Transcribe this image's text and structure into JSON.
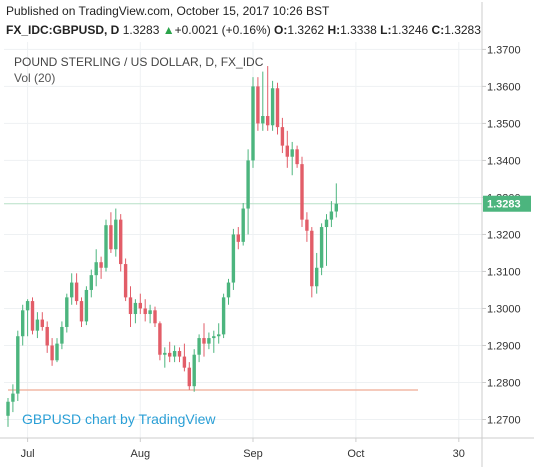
{
  "published_text": "Published on TradingView.com, October 15, 2017 10:26 BST",
  "quote": {
    "symbol": "FX_IDC:GBPUSD, D",
    "last": "1.3283",
    "change_arrow": "▲",
    "change": "+0.0021 (+0.16%)",
    "o_label": "O:",
    "o_value": "1.3262",
    "h_label": "H:",
    "h_value": "1.3338",
    "l_label": "L:",
    "l_value": "1.3246",
    "c_label": "C:",
    "c_value": "1.3283"
  },
  "colors": {
    "up": "#4cb57e",
    "down": "#e25d68",
    "last_price_bg": "#4cb57e",
    "last_price_line": "#b7e0c7",
    "vol_line": "#f2b8a6",
    "watermark": "#2a9fd6",
    "grid": "#eef1f3",
    "axis": "#cccccc"
  },
  "chart_data": {
    "type": "candlestick",
    "title": "POUND STERLING / US DOLLAR, D, FX_IDC",
    "indicator_label": "Vol (20)",
    "watermark": "GBPUSD chart by TradingView",
    "last_price_label": "1.3283",
    "ylim": [
      1.265,
      1.372
    ],
    "y_ticks": [
      "1.2700",
      "1.2800",
      "1.2900",
      "1.3000",
      "1.3100",
      "1.3200",
      "1.3300",
      "1.3400",
      "1.3500",
      "1.3600",
      "1.3700"
    ],
    "x_ticks": [
      {
        "label": "Jul",
        "index": 4
      },
      {
        "label": "Aug",
        "index": 27
      },
      {
        "label": "Sep",
        "index": 50
      },
      {
        "label": "Oct",
        "index": 71
      },
      {
        "label": "30",
        "index": 92
      }
    ],
    "candles": [
      {
        "o": 1.271,
        "h": 1.2758,
        "l": 1.268,
        "c": 1.2748
      },
      {
        "o": 1.2748,
        "h": 1.2795,
        "l": 1.272,
        "c": 1.277
      },
      {
        "o": 1.277,
        "h": 1.294,
        "l": 1.275,
        "c": 1.2925
      },
      {
        "o": 1.2925,
        "h": 1.301,
        "l": 1.29,
        "c": 1.2995
      },
      {
        "o": 1.2995,
        "h": 1.3025,
        "l": 1.2925,
        "c": 1.302
      },
      {
        "o": 1.302,
        "h": 1.303,
        "l": 1.293,
        "c": 1.294
      },
      {
        "o": 1.294,
        "h": 1.299,
        "l": 1.292,
        "c": 1.297
      },
      {
        "o": 1.297,
        "h": 1.299,
        "l": 1.294,
        "c": 1.295
      },
      {
        "o": 1.295,
        "h": 1.2965,
        "l": 1.288,
        "c": 1.29
      },
      {
        "o": 1.29,
        "h": 1.292,
        "l": 1.2845,
        "c": 1.286
      },
      {
        "o": 1.286,
        "h": 1.292,
        "l": 1.2855,
        "c": 1.2905
      },
      {
        "o": 1.2905,
        "h": 1.2965,
        "l": 1.289,
        "c": 1.295
      },
      {
        "o": 1.295,
        "h": 1.304,
        "l": 1.2935,
        "c": 1.303
      },
      {
        "o": 1.303,
        "h": 1.3095,
        "l": 1.301,
        "c": 1.307
      },
      {
        "o": 1.307,
        "h": 1.3095,
        "l": 1.301,
        "c": 1.302
      },
      {
        "o": 1.302,
        "h": 1.303,
        "l": 1.295,
        "c": 1.2965
      },
      {
        "o": 1.2965,
        "h": 1.306,
        "l": 1.2955,
        "c": 1.305
      },
      {
        "o": 1.305,
        "h": 1.3105,
        "l": 1.303,
        "c": 1.309
      },
      {
        "o": 1.309,
        "h": 1.316,
        "l": 1.306,
        "c": 1.3125
      },
      {
        "o": 1.3125,
        "h": 1.314,
        "l": 1.308,
        "c": 1.311
      },
      {
        "o": 1.311,
        "h": 1.324,
        "l": 1.31,
        "c": 1.3225
      },
      {
        "o": 1.3225,
        "h": 1.326,
        "l": 1.315,
        "c": 1.316
      },
      {
        "o": 1.316,
        "h": 1.327,
        "l": 1.314,
        "c": 1.324
      },
      {
        "o": 1.324,
        "h": 1.3255,
        "l": 1.31,
        "c": 1.312
      },
      {
        "o": 1.312,
        "h": 1.3135,
        "l": 1.302,
        "c": 1.303
      },
      {
        "o": 1.303,
        "h": 1.306,
        "l": 1.295,
        "c": 1.2985
      },
      {
        "o": 1.2985,
        "h": 1.3025,
        "l": 1.296,
        "c": 1.3015
      },
      {
        "o": 1.3015,
        "h": 1.304,
        "l": 1.2985,
        "c": 1.3
      },
      {
        "o": 1.3,
        "h": 1.3025,
        "l": 1.2965,
        "c": 1.2985
      },
      {
        "o": 1.2985,
        "h": 1.301,
        "l": 1.296,
        "c": 1.2995
      },
      {
        "o": 1.2995,
        "h": 1.3005,
        "l": 1.295,
        "c": 1.296
      },
      {
        "o": 1.296,
        "h": 1.2965,
        "l": 1.286,
        "c": 1.2875
      },
      {
        "o": 1.2875,
        "h": 1.2895,
        "l": 1.284,
        "c": 1.288
      },
      {
        "o": 1.288,
        "h": 1.291,
        "l": 1.2855,
        "c": 1.287
      },
      {
        "o": 1.287,
        "h": 1.29,
        "l": 1.2855,
        "c": 1.2885
      },
      {
        "o": 1.2885,
        "h": 1.2895,
        "l": 1.2855,
        "c": 1.287
      },
      {
        "o": 1.287,
        "h": 1.2905,
        "l": 1.283,
        "c": 1.284
      },
      {
        "o": 1.284,
        "h": 1.2855,
        "l": 1.278,
        "c": 1.279
      },
      {
        "o": 1.279,
        "h": 1.289,
        "l": 1.2775,
        "c": 1.2875
      },
      {
        "o": 1.2875,
        "h": 1.293,
        "l": 1.2855,
        "c": 1.292
      },
      {
        "o": 1.292,
        "h": 1.296,
        "l": 1.287,
        "c": 1.2905
      },
      {
        "o": 1.2905,
        "h": 1.2935,
        "l": 1.289,
        "c": 1.292
      },
      {
        "o": 1.292,
        "h": 1.294,
        "l": 1.288,
        "c": 1.2925
      },
      {
        "o": 1.2925,
        "h": 1.296,
        "l": 1.2905,
        "c": 1.293
      },
      {
        "o": 1.293,
        "h": 1.304,
        "l": 1.292,
        "c": 1.303
      },
      {
        "o": 1.303,
        "h": 1.308,
        "l": 1.301,
        "c": 1.307
      },
      {
        "o": 1.307,
        "h": 1.3215,
        "l": 1.305,
        "c": 1.32
      },
      {
        "o": 1.32,
        "h": 1.322,
        "l": 1.316,
        "c": 1.318
      },
      {
        "o": 1.318,
        "h": 1.3285,
        "l": 1.317,
        "c": 1.327
      },
      {
        "o": 1.327,
        "h": 1.343,
        "l": 1.32,
        "c": 1.34
      },
      {
        "o": 1.34,
        "h": 1.3625,
        "l": 1.338,
        "c": 1.36
      },
      {
        "o": 1.36,
        "h": 1.3625,
        "l": 1.348,
        "c": 1.35
      },
      {
        "o": 1.35,
        "h": 1.364,
        "l": 1.348,
        "c": 1.352
      },
      {
        "o": 1.352,
        "h": 1.3655,
        "l": 1.348,
        "c": 1.3495
      },
      {
        "o": 1.3495,
        "h": 1.3615,
        "l": 1.348,
        "c": 1.3595
      },
      {
        "o": 1.3595,
        "h": 1.361,
        "l": 1.347,
        "c": 1.349
      },
      {
        "o": 1.349,
        "h": 1.3515,
        "l": 1.342,
        "c": 1.344
      },
      {
        "o": 1.344,
        "h": 1.348,
        "l": 1.338,
        "c": 1.341
      },
      {
        "o": 1.341,
        "h": 1.345,
        "l": 1.336,
        "c": 1.343
      },
      {
        "o": 1.343,
        "h": 1.344,
        "l": 1.338,
        "c": 1.339
      },
      {
        "o": 1.339,
        "h": 1.341,
        "l": 1.322,
        "c": 1.324
      },
      {
        "o": 1.324,
        "h": 1.326,
        "l": 1.318,
        "c": 1.321
      },
      {
        "o": 1.321,
        "h": 1.322,
        "l": 1.303,
        "c": 1.306
      },
      {
        "o": 1.306,
        "h": 1.315,
        "l": 1.304,
        "c": 1.311
      },
      {
        "o": 1.311,
        "h": 1.323,
        "l": 1.309,
        "c": 1.322
      },
      {
        "o": 1.322,
        "h": 1.3255,
        "l": 1.3115,
        "c": 1.324
      },
      {
        "o": 1.324,
        "h": 1.329,
        "l": 1.322,
        "c": 1.3262
      },
      {
        "o": 1.3262,
        "h": 1.3338,
        "l": 1.3246,
        "c": 1.3283
      }
    ]
  }
}
